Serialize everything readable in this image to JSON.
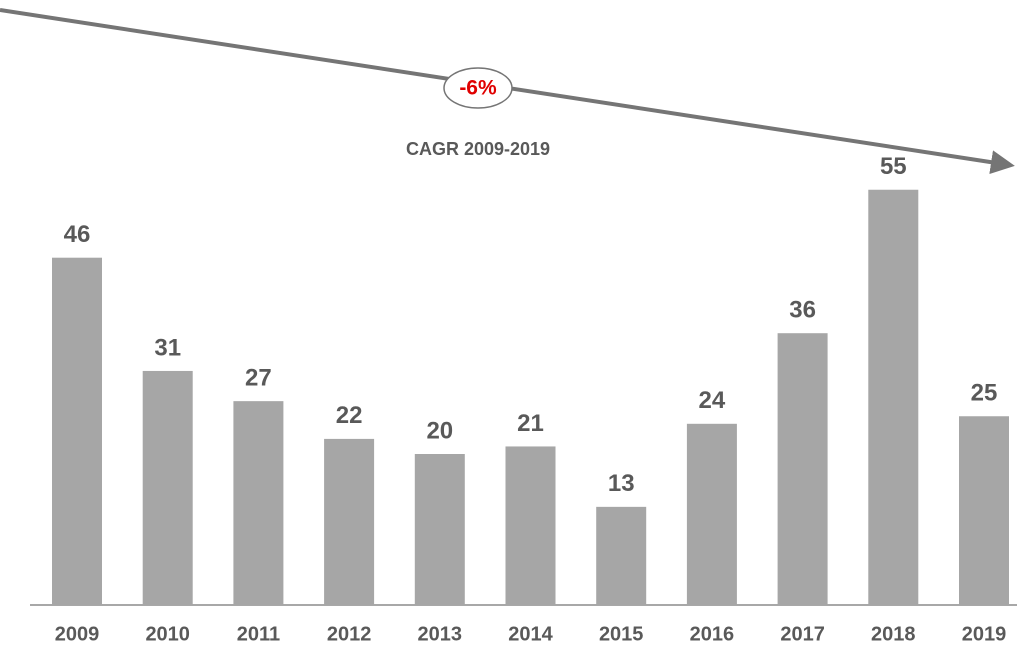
{
  "chart_data": {
    "type": "bar",
    "categories": [
      "2009",
      "2010",
      "2011",
      "2012",
      "2013",
      "2014",
      "2015",
      "2016",
      "2017",
      "2018",
      "2019"
    ],
    "values": [
      46,
      31,
      27,
      22,
      20,
      21,
      13,
      24,
      36,
      55,
      25
    ],
    "color": "#a6a6a6",
    "annotations": {
      "cagr_value": "-6%",
      "cagr_label": "CAGR 2009-2019"
    }
  }
}
